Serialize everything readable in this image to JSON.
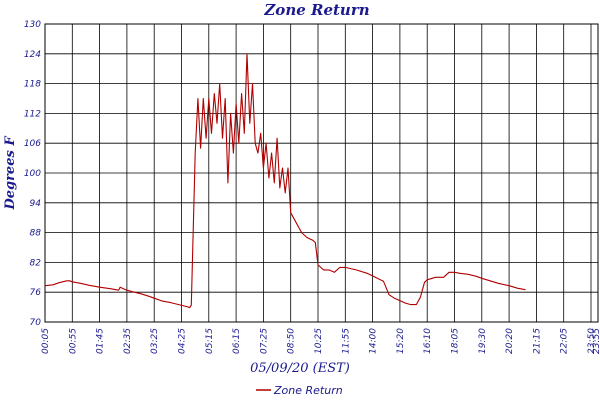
{
  "chart_data": {
    "type": "line",
    "title": "Zone Return",
    "ylabel": "Degrees F",
    "xlabel": "05/09/20 (EST)",
    "ylim": [
      70,
      130
    ],
    "y_ticks": [
      70,
      76,
      82,
      88,
      94,
      100,
      106,
      112,
      118,
      124,
      130
    ],
    "x_tick_labels": [
      "00:05",
      "00:55",
      "01:45",
      "02:35",
      "03:25",
      "04:25",
      "05:15",
      "06:15",
      "07:25",
      "08:50",
      "10:25",
      "11:55",
      "14:00",
      "15:20",
      "16:10",
      "18:05",
      "19:30",
      "20:20",
      "21:15",
      "22:05",
      "23:50",
      "23:55"
    ],
    "grid": true,
    "legend_position": "bottom-center",
    "colors": {
      "series": "#b00000",
      "grid": "#000000",
      "text": "#1a1a8c",
      "frame": "#000000"
    },
    "series": [
      {
        "name": "Zone Return",
        "values": [
          [
            0,
            77.3
          ],
          [
            0.3,
            77.5
          ],
          [
            0.5,
            77.9
          ],
          [
            0.8,
            78.3
          ],
          [
            0.9,
            78.3
          ],
          [
            1.0,
            78.1
          ],
          [
            1.3,
            77.8
          ],
          [
            1.6,
            77.4
          ],
          [
            2.0,
            77.0
          ],
          [
            2.4,
            76.7
          ],
          [
            2.7,
            76.4
          ],
          [
            2.75,
            77.0
          ],
          [
            3.0,
            76.4
          ],
          [
            3.2,
            76.1
          ],
          [
            3.5,
            75.7
          ],
          [
            3.8,
            75.2
          ],
          [
            4.0,
            74.8
          ],
          [
            4.3,
            74.2
          ],
          [
            4.6,
            73.9
          ],
          [
            4.9,
            73.5
          ],
          [
            5.2,
            73.1
          ],
          [
            5.3,
            72.9
          ],
          [
            5.36,
            73.4
          ],
          [
            5.5,
            104.0
          ],
          [
            5.6,
            115.0
          ],
          [
            5.7,
            105.0
          ],
          [
            5.8,
            115.0
          ],
          [
            5.9,
            107.0
          ],
          [
            6.0,
            115.0
          ],
          [
            6.1,
            108.0
          ],
          [
            6.2,
            116.0
          ],
          [
            6.3,
            110.0
          ],
          [
            6.4,
            118.0
          ],
          [
            6.5,
            107.0
          ],
          [
            6.6,
            115.0
          ],
          [
            6.7,
            98.0
          ],
          [
            6.8,
            112.0
          ],
          [
            6.9,
            104.0
          ],
          [
            7.0,
            114.0
          ],
          [
            7.1,
            106.0
          ],
          [
            7.2,
            116.0
          ],
          [
            7.3,
            108.0
          ],
          [
            7.4,
            124.0
          ],
          [
            7.5,
            110.0
          ],
          [
            7.6,
            118.0
          ],
          [
            7.7,
            106.0
          ],
          [
            7.8,
            104.0
          ],
          [
            7.9,
            108.0
          ],
          [
            8.0,
            101.0
          ],
          [
            8.1,
            106.0
          ],
          [
            8.2,
            99.0
          ],
          [
            8.3,
            104.0
          ],
          [
            8.4,
            98.0
          ],
          [
            8.5,
            107.0
          ],
          [
            8.6,
            97.0
          ],
          [
            8.7,
            101.0
          ],
          [
            8.8,
            96.0
          ],
          [
            8.9,
            101.0
          ],
          [
            9.0,
            92.0
          ],
          [
            9.2,
            90.0
          ],
          [
            9.4,
            88.0
          ],
          [
            9.6,
            87.0
          ],
          [
            9.8,
            86.5
          ],
          [
            9.9,
            86.0
          ],
          [
            10.0,
            81.5
          ],
          [
            10.2,
            80.5
          ],
          [
            10.4,
            80.5
          ],
          [
            10.6,
            80.0
          ],
          [
            10.8,
            81.0
          ],
          [
            11.0,
            81.0
          ],
          [
            11.4,
            80.5
          ],
          [
            11.8,
            79.8
          ],
          [
            12.1,
            79.0
          ],
          [
            12.4,
            78.2
          ],
          [
            12.6,
            75.5
          ],
          [
            12.8,
            74.8
          ],
          [
            13.0,
            74.3
          ],
          [
            13.2,
            73.8
          ],
          [
            13.4,
            73.5
          ],
          [
            13.6,
            73.5
          ],
          [
            13.75,
            75.0
          ],
          [
            13.9,
            78.0
          ],
          [
            14.0,
            78.5
          ],
          [
            14.3,
            79.0
          ],
          [
            14.6,
            79.0
          ],
          [
            14.8,
            80.0
          ],
          [
            15.0,
            80.0
          ],
          [
            15.2,
            79.8
          ],
          [
            15.5,
            79.6
          ],
          [
            15.8,
            79.2
          ],
          [
            16.0,
            78.8
          ],
          [
            16.3,
            78.3
          ],
          [
            16.6,
            77.8
          ],
          [
            17.0,
            77.3
          ],
          [
            17.3,
            76.8
          ],
          [
            17.6,
            76.5
          ]
        ]
      }
    ]
  }
}
